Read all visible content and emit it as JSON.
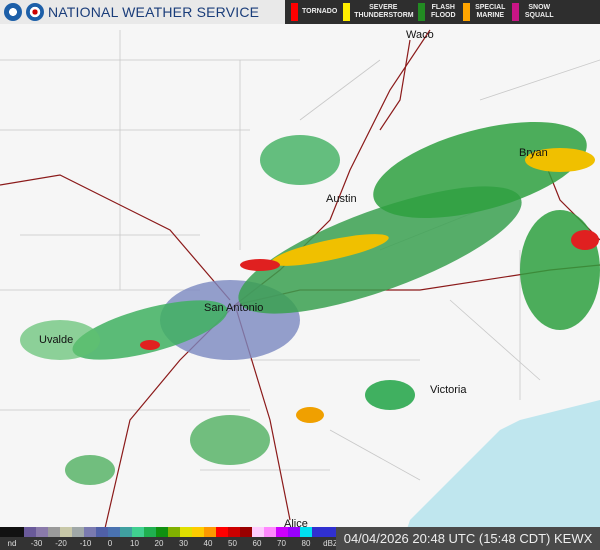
{
  "header": {
    "title": "NATIONAL WEATHER SERVICE",
    "logos": [
      "noaa-logo",
      "nws-logo"
    ]
  },
  "legend": [
    {
      "label": "TORNADO",
      "color": "#ff0000"
    },
    {
      "label": "SEVERE THUNDERSTORM",
      "color": "#ffee00"
    },
    {
      "label": "FLASH FLOOD",
      "color": "#228b22"
    },
    {
      "label": "SPECIAL MARINE",
      "color": "#ffa500"
    },
    {
      "label": "SNOW SQUALL",
      "color": "#c71585"
    }
  ],
  "cities": [
    "Waco",
    "Bryan",
    "Austin",
    "San Antonio",
    "Uvalde",
    "Victoria",
    "Alice"
  ],
  "colorbar": {
    "labels": [
      "nd",
      "-30",
      "-20",
      "-10",
      "0",
      "10",
      "20",
      "30",
      "40",
      "50",
      "60",
      "70",
      "80",
      "dBZ"
    ],
    "colors": [
      "#111",
      "#111",
      "#6a5a9a",
      "#8a7aaa",
      "#9a9a9a",
      "#c8c8a8",
      "#a0a8a8",
      "#7a7ab0",
      "#5060a8",
      "#4a72b0",
      "#40a0a0",
      "#40d090",
      "#20b050",
      "#109010",
      "#80b000",
      "#e0e000",
      "#ffcc00",
      "#ff9900",
      "#ff0000",
      "#cc0000",
      "#990000",
      "#ffccff",
      "#ff88ff",
      "#cc00ff",
      "#9900ff",
      "#00e0f0",
      "#3030d0",
      "#3030d0"
    ]
  },
  "timestamp": "04/04/2026 20:48 UTC (15:48 CDT) KEWX"
}
